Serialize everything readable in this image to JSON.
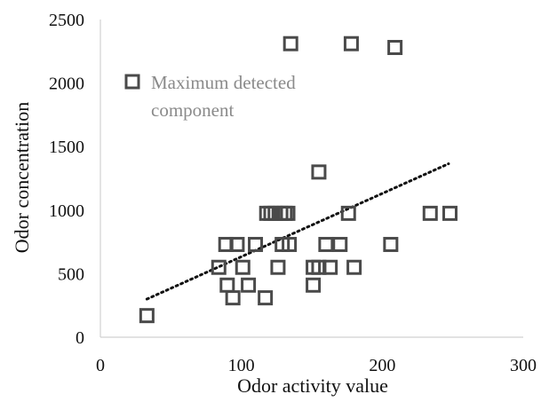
{
  "chart_data": {
    "type": "scatter",
    "xlabel": "Odor activity value",
    "ylabel": "Odor concentration",
    "xlim": [
      0,
      300
    ],
    "ylim": [
      0,
      2500
    ],
    "x_ticks": [
      "0",
      "100",
      "200",
      "300"
    ],
    "y_ticks": [
      "0",
      "500",
      "1000",
      "1500",
      "2000",
      "2500"
    ],
    "grid": false,
    "legend": {
      "placement": "top-left",
      "label_line1": "Maximum detected",
      "label_line2": "component"
    },
    "colors": {
      "marker": "#4a4a4a",
      "trendline": "#111111",
      "legend_text": "#8a8a8a",
      "axis": "#d0d0d0"
    },
    "trendline": {
      "style": "dotted",
      "x_start": 33,
      "y_start": 300,
      "x_end": 247,
      "y_end": 1365
    },
    "series": [
      {
        "points": [
          [
            33,
            170
          ],
          [
            84,
            550
          ],
          [
            89,
            730
          ],
          [
            90,
            410
          ],
          [
            94,
            310
          ],
          [
            97,
            730
          ],
          [
            101,
            550
          ],
          [
            105,
            410
          ],
          [
            110,
            730
          ],
          [
            117,
            310
          ],
          [
            118,
            975
          ],
          [
            121,
            975
          ],
          [
            124,
            975
          ],
          [
            126,
            550
          ],
          [
            128,
            975
          ],
          [
            129,
            730
          ],
          [
            131,
            975
          ],
          [
            133,
            975
          ],
          [
            134,
            730
          ],
          [
            135,
            2310
          ],
          [
            151,
            550
          ],
          [
            151,
            410
          ],
          [
            155,
            550
          ],
          [
            155,
            1300
          ],
          [
            160,
            730
          ],
          [
            163,
            550
          ],
          [
            170,
            730
          ],
          [
            176,
            975
          ],
          [
            178,
            2310
          ],
          [
            180,
            550
          ],
          [
            206,
            730
          ],
          [
            209,
            2280
          ],
          [
            234,
            975
          ],
          [
            248,
            975
          ]
        ]
      }
    ]
  }
}
